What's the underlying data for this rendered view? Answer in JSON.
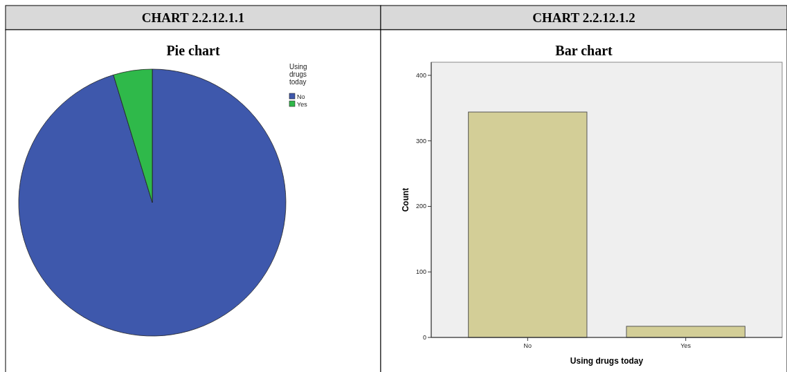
{
  "chart_data": [
    {
      "type": "pie",
      "title": "CHART 2.2.12.1.1",
      "subtitle": "Pie chart",
      "legend_title": "Using drugs today",
      "legend": "top right",
      "categories": [
        "No",
        "Yes"
      ],
      "values": [
        95.3,
        4.7
      ],
      "colors": [
        "#3e58ac",
        "#2fb94a"
      ]
    },
    {
      "type": "bar",
      "title": "CHART 2.2.12.1.2",
      "subtitle": "Bar chart",
      "xlabel": "Using drugs today",
      "ylabel": "Count",
      "categories": [
        "No",
        "Yes"
      ],
      "values": [
        344,
        17
      ],
      "color": "#d3ce97",
      "ylim": [
        0,
        420
      ],
      "yticks": [
        0,
        100,
        200,
        300,
        400
      ]
    }
  ]
}
